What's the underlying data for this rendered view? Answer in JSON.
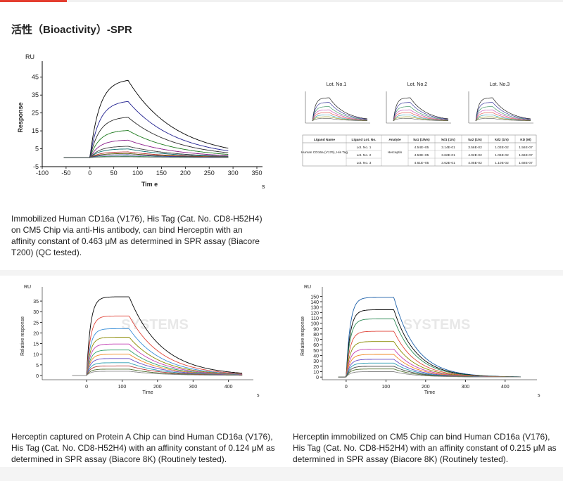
{
  "page": {
    "title": "活性（Bioactivity）-SPR"
  },
  "charts": [
    {
      "type": "line",
      "ylabel_top": "RU",
      "ylabel": "Response",
      "xlabel": "Tim e",
      "xunit": "s",
      "xticks": [
        -100,
        -50,
        0,
        50,
        100,
        150,
        200,
        250,
        300,
        350
      ],
      "yticks": [
        -5,
        5,
        15,
        25,
        35,
        45
      ],
      "xlim": [
        -100,
        350
      ],
      "ylim": [
        -5,
        50
      ],
      "assoc_end": 80,
      "run_end": 290,
      "plateaus": [
        44,
        32,
        23,
        15.5,
        10,
        6.5,
        5,
        3.3,
        2.4,
        1.7,
        0.9,
        0.5
      ],
      "k_on": 0.05,
      "k_off": 0.01,
      "baseline_start": -55,
      "palette": [
        "#000000",
        "#1f1f8f",
        "#2a2a2a",
        "#1d7a1d",
        "#8a1c8a",
        "#444444",
        "#0b6e6e",
        "#b33",
        "#5a5a00",
        "#333399",
        "#2e8b57",
        "#777777"
      ]
    },
    {
      "type": "line",
      "ylabel_top": "RU",
      "ylabel": "Relative response",
      "xlabel": "Time",
      "xunit": "s",
      "xticks": [
        0,
        100,
        200,
        300,
        400
      ],
      "yticks": [
        0,
        5,
        10,
        15,
        20,
        25,
        30,
        35
      ],
      "xlim": [
        -125,
        470
      ],
      "ylim": [
        -2,
        39
      ],
      "assoc_end": 120,
      "run_end": 440,
      "plateaus": [
        37,
        28,
        22,
        18,
        14.8,
        12,
        10,
        8,
        6,
        4.5,
        3,
        2
      ],
      "k_on": 0.09,
      "k_off": 0.011,
      "baseline_start": -40,
      "palette": [
        "#000000",
        "#e0473c",
        "#3a8fd8",
        "#8a8a00",
        "#c23fb3",
        "#31a06a",
        "#f08a24",
        "#6a4bc4",
        "#2a9cb2",
        "#b53b3b",
        "#4f6f2f",
        "#888888"
      ]
    },
    {
      "type": "line",
      "ylabel_top": "RU",
      "ylabel": "Relative response",
      "xlabel": "Time",
      "xunit": "s",
      "xticks": [
        0,
        100,
        200,
        300,
        400
      ],
      "yticks": [
        0,
        10,
        20,
        30,
        40,
        50,
        60,
        70,
        80,
        90,
        100,
        110,
        120,
        130,
        140,
        150
      ],
      "xlim": [
        -60,
        480
      ],
      "ylim": [
        -5,
        157
      ],
      "assoc_end": 120,
      "run_end": 440,
      "plateaus": [
        148,
        125,
        108,
        85,
        66,
        52,
        42,
        33,
        26,
        20,
        15,
        10
      ],
      "k_on": 0.1,
      "k_off": 0.018,
      "baseline_start": -20,
      "palette": [
        "#1b5fa8",
        "#000000",
        "#2e8b57",
        "#e0473c",
        "#8a8a00",
        "#c23fb3",
        "#f08a24",
        "#6a4bc4",
        "#2a9cb2",
        "#444444",
        "#4f6f2f",
        "#888888"
      ]
    }
  ],
  "lot_panel": {
    "lots": [
      "Lot. No.1",
      "Lot. No.2",
      "Lot. No.3"
    ],
    "headers": [
      "Ligand Name",
      "Ligand Lot. No.",
      "Analyte",
      "ka1 (1/Ms)",
      "kd1 (1/s)",
      "ka2 (1/s)",
      "kd2 (1/s)",
      "KD (M)"
    ],
    "ligand": "Human CD16a (V176), His Tag",
    "analyte": "Herceptin",
    "rows": [
      {
        "lot": "Lot. No. 1",
        "ka1": "4.54E+05",
        "kd1": "3.14E-01",
        "ka2": "3.56E-02",
        "kd2": "1.03E-02",
        "kd": "1.56E-07"
      },
      {
        "lot": "Lot. No. 2",
        "ka1": "4.53E+05",
        "kd1": "3.62E-01",
        "ka2": "4.02E-02",
        "kd2": "1.06E-02",
        "kd": "1.66E-07"
      },
      {
        "lot": "Lot. No. 3",
        "ka1": "4.61E+05",
        "kd1": "3.62E-01",
        "ka2": "4.05E-02",
        "kd2": "1.10E-02",
        "kd": "1.68E-07"
      }
    ]
  },
  "watermarks": [
    "SYSTEMS",
    "SYSTEMS"
  ],
  "captions": [
    "Immobilized Human CD16a (V176), His Tag (Cat. No. CD8-H52H4) on CM5 Chip via anti-His antibody, can bind Herceptin with an affinity constant of 0.463 μM as determined in SPR assay (Biacore T200) (QC tested).",
    "Herceptin captured on Protein A Chip can bind Human CD16a (V176), His Tag (Cat. No. CD8-H52H4) with an affinity constant of 0.124 μM as determined in SPR assay (Biacore 8K) (Routinely tested).",
    "Herceptin immobilized on CM5 Chip can bind Human CD16a (V176), His Tag (Cat. No. CD8-H52H4) with an affinity constant of 0.215 μM as determined in SPR assay (Biacore 8K) (Routinely tested)."
  ]
}
